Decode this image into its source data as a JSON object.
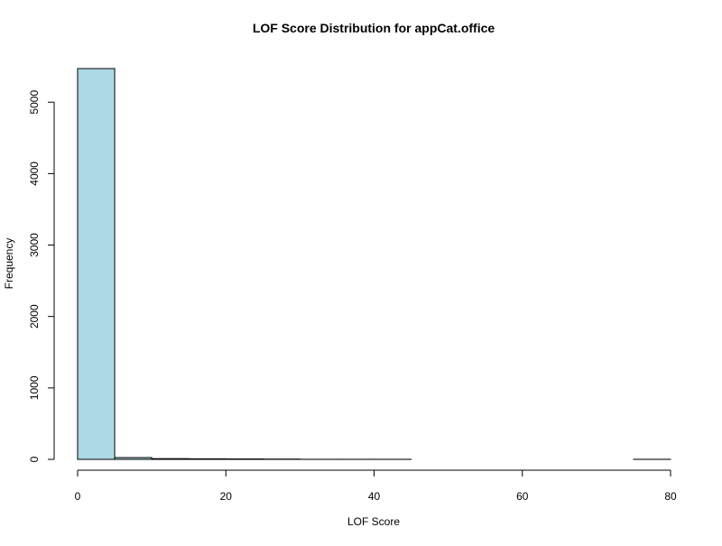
{
  "chart_data": {
    "type": "bar",
    "title": "LOF Score Distribution for appCat.office",
    "xlabel": "LOF Score",
    "ylabel": "Frequency",
    "bin_edges": [
      0,
      5,
      10,
      15,
      20,
      25,
      30,
      35,
      40,
      45,
      50,
      55,
      60,
      65,
      70,
      75,
      80
    ],
    "values": [
      5470,
      25,
      10,
      8,
      6,
      4,
      1,
      1,
      1,
      0,
      0,
      0,
      0,
      0,
      0,
      1
    ],
    "xlim": [
      0,
      80
    ],
    "ylim": [
      0,
      5470
    ],
    "x_ticks": [
      0,
      20,
      40,
      60,
      80
    ],
    "y_ticks": [
      0,
      1000,
      2000,
      3000,
      4000,
      5000
    ],
    "bar_fill": "#add8e6",
    "bar_stroke": "#000000",
    "grid": false
  }
}
